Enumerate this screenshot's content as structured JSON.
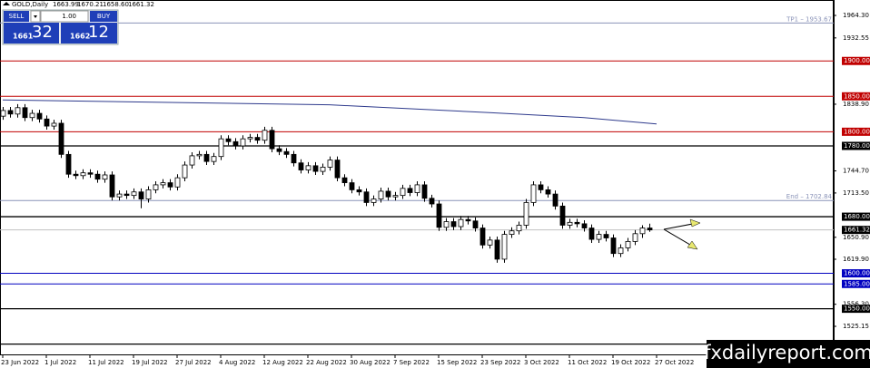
{
  "chart_data": {
    "type": "candlestick",
    "symbol": "GOLD,Daily",
    "ohlc_header": [
      "1663.99",
      "1670.21",
      "1658.60",
      "1661.32"
    ],
    "panel": {
      "sell": "SELL",
      "buy": "BUY",
      "lots": "1.00",
      "bid_big": "1661",
      "bid_small": "32",
      "ask_big": "1662",
      "ask_small": "12"
    },
    "watermark": "fxdailyreport.com",
    "ylim": [
      1484.2,
      1986.1
    ],
    "yticks": [
      {
        "value": 1964.3,
        "label": "1964.30"
      },
      1932.55,
      {
        "value": 1838.9,
        "label": "1838.90"
      },
      {
        "value": 1744.7,
        "label": "1744.70"
      },
      {
        "value": 1713.5,
        "label": "1713.50"
      },
      {
        "value": 1650.9,
        "label": "1650.90"
      },
      {
        "value": 1619.9,
        "label": "1619.90"
      },
      {
        "value": 1556.3,
        "label": "1556.30"
      },
      1525.15
    ],
    "xticks": [
      {
        "value": 0,
        "label": "23 Jun 2022"
      },
      {
        "value": 6,
        "label": "1 Jul 2022"
      },
      {
        "value": 12,
        "label": "11 Jul 2022"
      },
      {
        "value": 18,
        "label": "19 Jul 2022"
      },
      {
        "value": 24,
        "label": "27 Jul 2022"
      },
      {
        "value": 30,
        "label": "4 Aug 2022"
      },
      {
        "value": 36,
        "label": "12 Aug 2022"
      },
      {
        "value": 42,
        "label": "22 Aug 2022"
      },
      {
        "value": 48,
        "label": "30 Aug 2022"
      },
      {
        "value": 54,
        "label": "7 Sep 2022"
      },
      {
        "value": 60,
        "label": "15 Sep 2022"
      },
      {
        "value": 66,
        "label": "23 Sep 2022"
      },
      {
        "value": 72,
        "label": "3 Oct 2022"
      },
      {
        "value": 78,
        "label": "11 Oct 2022"
      },
      {
        "value": 84,
        "label": "19 Oct 2022"
      },
      {
        "value": 90,
        "label": "27 Oct 2022"
      }
    ],
    "levels": [
      {
        "value": 1953.67,
        "label": "TP1 – 1953.67",
        "color": "#8a93b8",
        "kind": "inline"
      },
      {
        "value": 1900,
        "label": "1900.00",
        "color": "#c00000",
        "kind": "axis"
      },
      {
        "value": 1850,
        "label": "1850.00",
        "color": "#c00000",
        "kind": "axis"
      },
      {
        "value": 1800,
        "label": "1800.00",
        "color": "#c00000",
        "kind": "axis"
      },
      {
        "value": 1780,
        "label": "1780.00",
        "color": "#000000",
        "kind": "axis"
      },
      {
        "value": 1702.84,
        "label": "End – 1702.84",
        "color": "#8a93b8",
        "kind": "inline"
      },
      {
        "value": 1680,
        "label": "1680.00",
        "color": "#000000",
        "kind": "axis"
      },
      {
        "value": 1661.32,
        "label": "1661.32",
        "color": "#c0c0c0",
        "kind": "axis"
      },
      {
        "value": 1600,
        "label": "1600.00",
        "color": "#0000c0",
        "kind": "axis"
      },
      {
        "value": 1585,
        "label": "1585.00",
        "color": "#0000c0",
        "kind": "axis"
      },
      {
        "value": 1550,
        "label": "1550.00",
        "color": "#000000",
        "kind": "axis"
      },
      {
        "value": 1500,
        "color": "#000000",
        "kind": "axis"
      }
    ],
    "ma": {
      "color": "#2e3a8c",
      "x": [
        0,
        45,
        67,
        80,
        90
      ],
      "values": [
        1845,
        1838,
        1827,
        1820,
        1811
      ]
    },
    "candles": [
      [
        1822,
        1835,
        1817,
        1830
      ],
      [
        1830,
        1835,
        1820,
        1825
      ],
      [
        1825,
        1839,
        1820,
        1834
      ],
      [
        1834,
        1839,
        1815,
        1820
      ],
      [
        1820,
        1831,
        1815,
        1826
      ],
      [
        1826,
        1831,
        1813,
        1818
      ],
      [
        1818,
        1823,
        1803,
        1808
      ],
      [
        1808,
        1817,
        1803,
        1812
      ],
      [
        1812,
        1817,
        1763,
        1768
      ],
      [
        1768,
        1773,
        1735,
        1740
      ],
      [
        1740,
        1745,
        1733,
        1738
      ],
      [
        1738,
        1747,
        1733,
        1742
      ],
      [
        1742,
        1747,
        1735,
        1740
      ],
      [
        1740,
        1745,
        1728,
        1733
      ],
      [
        1733,
        1744,
        1728,
        1739
      ],
      [
        1739,
        1744,
        1703,
        1708
      ],
      [
        1708,
        1717,
        1703,
        1712
      ],
      [
        1712,
        1717,
        1705,
        1710
      ],
      [
        1710,
        1720,
        1705,
        1715
      ],
      [
        1715,
        1720,
        1692,
        1705
      ],
      [
        1705,
        1723,
        1700,
        1718
      ],
      [
        1718,
        1730,
        1713,
        1725
      ],
      [
        1725,
        1733,
        1720,
        1728
      ],
      [
        1728,
        1733,
        1717,
        1722
      ],
      [
        1722,
        1740,
        1717,
        1735
      ],
      [
        1735,
        1758,
        1730,
        1753
      ],
      [
        1753,
        1771,
        1748,
        1766
      ],
      [
        1766,
        1773,
        1761,
        1768
      ],
      [
        1768,
        1773,
        1753,
        1758
      ],
      [
        1758,
        1770,
        1753,
        1765
      ],
      [
        1765,
        1795,
        1760,
        1790
      ],
      [
        1790,
        1795,
        1781,
        1786
      ],
      [
        1786,
        1791,
        1775,
        1780
      ],
      [
        1780,
        1795,
        1775,
        1790
      ],
      [
        1790,
        1797,
        1785,
        1792
      ],
      [
        1792,
        1797,
        1783,
        1788
      ],
      [
        1788,
        1807,
        1783,
        1802
      ],
      [
        1802,
        1807,
        1771,
        1776
      ],
      [
        1776,
        1781,
        1767,
        1772
      ],
      [
        1772,
        1777,
        1763,
        1768
      ],
      [
        1768,
        1773,
        1751,
        1756
      ],
      [
        1756,
        1761,
        1741,
        1746
      ],
      [
        1746,
        1757,
        1741,
        1752
      ],
      [
        1752,
        1757,
        1739,
        1744
      ],
      [
        1744,
        1755,
        1739,
        1750
      ],
      [
        1750,
        1765,
        1745,
        1760
      ],
      [
        1760,
        1765,
        1730,
        1735
      ],
      [
        1735,
        1740,
        1723,
        1728
      ],
      [
        1728,
        1733,
        1713,
        1718
      ],
      [
        1718,
        1723,
        1710,
        1715
      ],
      [
        1715,
        1720,
        1695,
        1700
      ],
      [
        1700,
        1710,
        1695,
        1705
      ],
      [
        1705,
        1721,
        1700,
        1716
      ],
      [
        1716,
        1721,
        1703,
        1708
      ],
      [
        1708,
        1715,
        1703,
        1710
      ],
      [
        1710,
        1725,
        1705,
        1720
      ],
      [
        1720,
        1725,
        1709,
        1714
      ],
      [
        1714,
        1730,
        1709,
        1725
      ],
      [
        1725,
        1730,
        1701,
        1706
      ],
      [
        1706,
        1711,
        1693,
        1698
      ],
      [
        1698,
        1703,
        1660,
        1665
      ],
      [
        1665,
        1678,
        1660,
        1673
      ],
      [
        1673,
        1678,
        1661,
        1666
      ],
      [
        1666,
        1681,
        1661,
        1676
      ],
      [
        1676,
        1681,
        1669,
        1674
      ],
      [
        1674,
        1679,
        1659,
        1664
      ],
      [
        1664,
        1669,
        1635,
        1640
      ],
      [
        1640,
        1652,
        1635,
        1647
      ],
      [
        1647,
        1652,
        1615,
        1620
      ],
      [
        1620,
        1660,
        1615,
        1655
      ],
      [
        1655,
        1665,
        1650,
        1660
      ],
      [
        1660,
        1673,
        1655,
        1668
      ],
      [
        1668,
        1705,
        1663,
        1700
      ],
      [
        1700,
        1730,
        1695,
        1725
      ],
      [
        1725,
        1730,
        1713,
        1718
      ],
      [
        1718,
        1723,
        1707,
        1712
      ],
      [
        1712,
        1717,
        1690,
        1695
      ],
      [
        1695,
        1700,
        1663,
        1668
      ],
      [
        1668,
        1677,
        1663,
        1672
      ],
      [
        1672,
        1677,
        1665,
        1670
      ],
      [
        1670,
        1675,
        1659,
        1664
      ],
      [
        1664,
        1669,
        1643,
        1648
      ],
      [
        1648,
        1660,
        1643,
        1655
      ],
      [
        1655,
        1660,
        1645,
        1650
      ],
      [
        1650,
        1655,
        1623,
        1628
      ],
      [
        1628,
        1641,
        1623,
        1636
      ],
      [
        1636,
        1650,
        1631,
        1645
      ],
      [
        1645,
        1661,
        1640,
        1656
      ],
      [
        1656,
        1668,
        1650,
        1664
      ],
      [
        1663.99,
        1670.21,
        1658.6,
        1661.32
      ]
    ]
  }
}
